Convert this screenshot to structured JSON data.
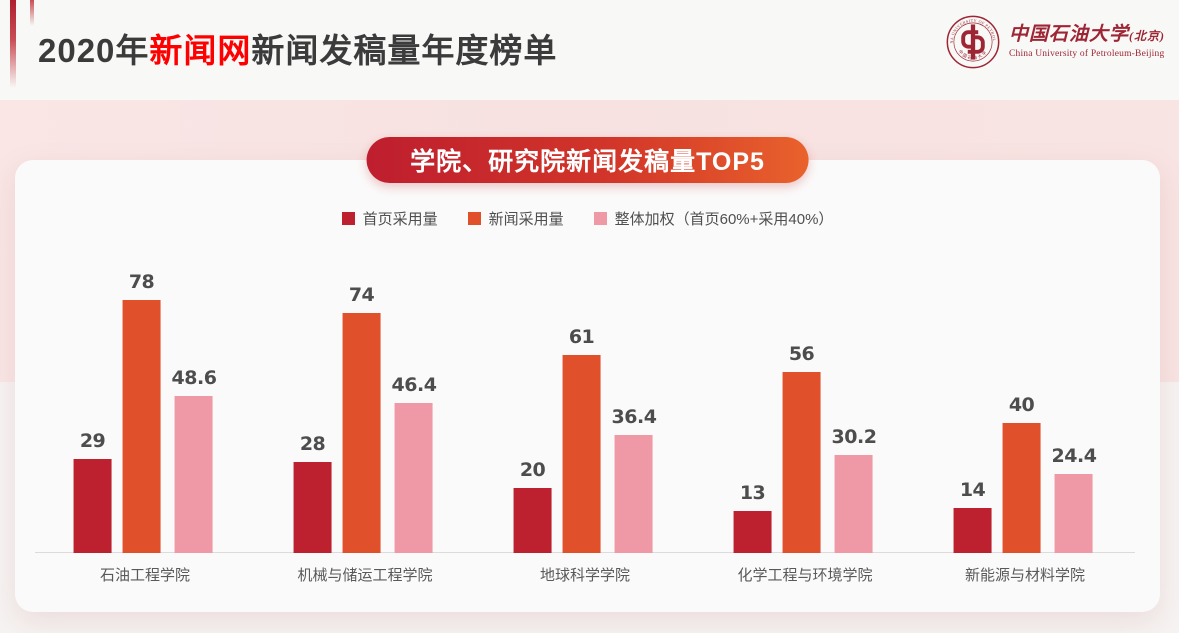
{
  "header": {
    "title_prefix": "2020年",
    "title_highlight": "新闻网",
    "title_suffix": "新闻发稿量年度榜单",
    "logo": {
      "name_cn": "中国石油大学",
      "name_cn_suffix": "(北京)",
      "name_en": "China University of Petroleum-Beijing",
      "seal_rim_text_top": "CHINA UNIVERSITY OF PETROLEUM",
      "seal_rim_text_bottom": "中国石油大学"
    }
  },
  "banner": {
    "title": "学院、研究院新闻发稿量TOP5"
  },
  "chart_data": {
    "type": "bar",
    "title": "学院、研究院新闻发稿量TOP5",
    "categories": [
      "石油工程学院",
      "机械与储运工程学院",
      "地球科学学院",
      "化学工程与环境学院",
      "新能源与材料学院"
    ],
    "series": [
      {
        "name": "首页采用量",
        "color": "#bd202e",
        "values": [
          29,
          28,
          20,
          13,
          14
        ]
      },
      {
        "name": "新闻采用量",
        "color": "#e0502b",
        "values": [
          78,
          74,
          61,
          56,
          40
        ]
      },
      {
        "name": "整体加权（首页60%+采用40%）",
        "color": "#ee99a5",
        "values": [
          48.6,
          46.4,
          36.4,
          30.2,
          24.4
        ]
      }
    ],
    "xlabel": "",
    "ylabel": "",
    "ylim": [
      0,
      85
    ],
    "grid": false,
    "legend_position": "top",
    "value_labels": true
  },
  "colors": {
    "title_text": "#3b3b3b",
    "title_highlight": "#fe0000",
    "header_accent": "#b01f2e",
    "pink_band": "#f8e4e3",
    "card_background": "#fbfafa",
    "banner_gradient_start": "#be1e2e",
    "banner_gradient_end": "#e9622c",
    "logo_red": "#9e2533",
    "axis_line": "#dcdada",
    "value_label_text": "#4d4d4d",
    "category_label_text": "#595959"
  }
}
